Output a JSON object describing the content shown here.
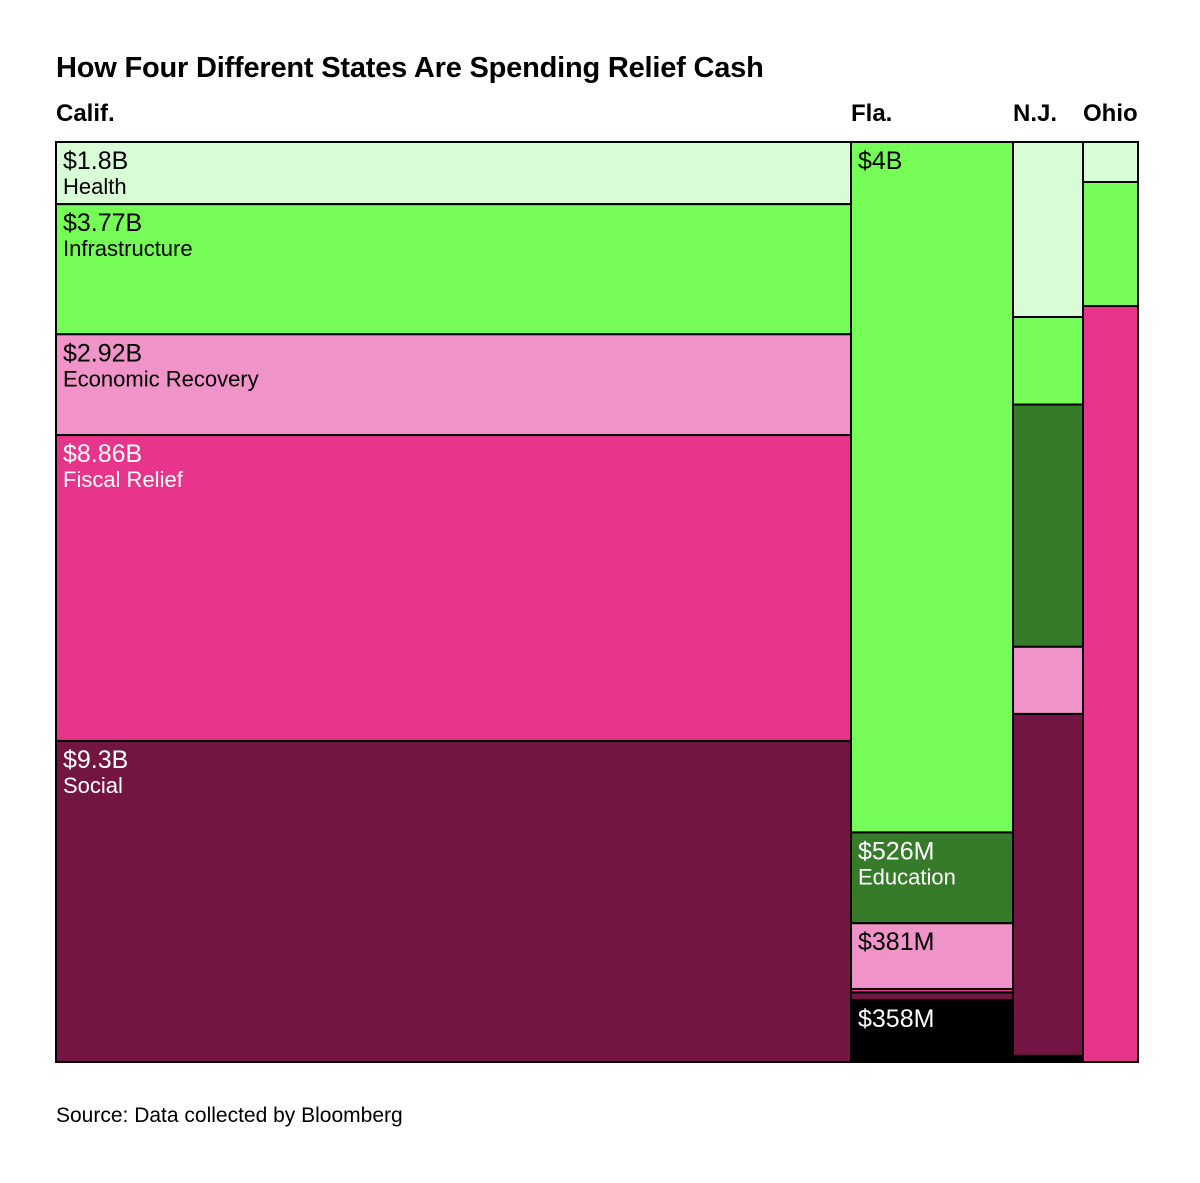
{
  "colors": {
    "Health": "#d8fdd6",
    "Infrastructure": "#76fd58",
    "Economic Recovery": "#ef93c8",
    "Fiscal Relief": "#e9348b",
    "Social": "#721542",
    "Education": "#367b2a",
    "Other": "#000000",
    "outline": "#000000",
    "text_dark": "#000000",
    "text_light": "#ffffff"
  },
  "chart_data": {
    "type": "treemap",
    "title": "How Four Different States Are Spending Relief Cash",
    "source": "Source: Data collected by Bloomberg",
    "unit": "USD billions",
    "states": [
      {
        "name": "Calif.",
        "segments": [
          {
            "category": "Health",
            "value": 1.8,
            "amount_label": "$1.8B",
            "category_label": "Health"
          },
          {
            "category": "Infrastructure",
            "value": 3.77,
            "amount_label": "$3.77B",
            "category_label": "Infrastructure"
          },
          {
            "category": "Economic Recovery",
            "value": 2.92,
            "amount_label": "$2.92B",
            "category_label": "Economic Recovery"
          },
          {
            "category": "Fiscal Relief",
            "value": 8.86,
            "amount_label": "$8.86B",
            "category_label": "Fiscal Relief"
          },
          {
            "category": "Social",
            "value": 9.3,
            "amount_label": "$9.3B",
            "category_label": "Social"
          }
        ]
      },
      {
        "name": "Fla.",
        "segments": [
          {
            "category": "Infrastructure",
            "value": 4.0,
            "amount_label": "$4B",
            "category_label": ""
          },
          {
            "category": "Education",
            "value": 0.526,
            "amount_label": "$526M",
            "category_label": "Education"
          },
          {
            "category": "Economic Recovery",
            "value": 0.381,
            "amount_label": "$381M",
            "category_label": ""
          },
          {
            "category": "Fiscal Relief",
            "value": 0.02,
            "amount_label": "",
            "category_label": ""
          },
          {
            "category": "Social",
            "value": 0.045,
            "amount_label": "",
            "category_label": ""
          },
          {
            "category": "Other",
            "value": 0.358,
            "amount_label": "$358M",
            "category_label": ""
          }
        ]
      },
      {
        "name": "N.J.",
        "segments": [
          {
            "category": "Health",
            "value": 0.86,
            "amount_label": "",
            "category_label": ""
          },
          {
            "category": "Infrastructure",
            "value": 0.43,
            "amount_label": "",
            "category_label": ""
          },
          {
            "category": "Education",
            "value": 1.19,
            "amount_label": "",
            "category_label": ""
          },
          {
            "category": "Economic Recovery",
            "value": 0.33,
            "amount_label": "",
            "category_label": ""
          },
          {
            "category": "Social",
            "value": 1.68,
            "amount_label": "",
            "category_label": ""
          },
          {
            "category": "Other",
            "value": 0.03,
            "amount_label": "",
            "category_label": ""
          }
        ]
      },
      {
        "name": "Ohio",
        "segments": [
          {
            "category": "Health",
            "value": 0.1,
            "amount_label": "",
            "category_label": ""
          },
          {
            "category": "Infrastructure",
            "value": 0.31,
            "amount_label": "",
            "category_label": ""
          },
          {
            "category": "Fiscal Relief",
            "value": 1.89,
            "amount_label": "",
            "category_label": ""
          }
        ]
      }
    ]
  }
}
